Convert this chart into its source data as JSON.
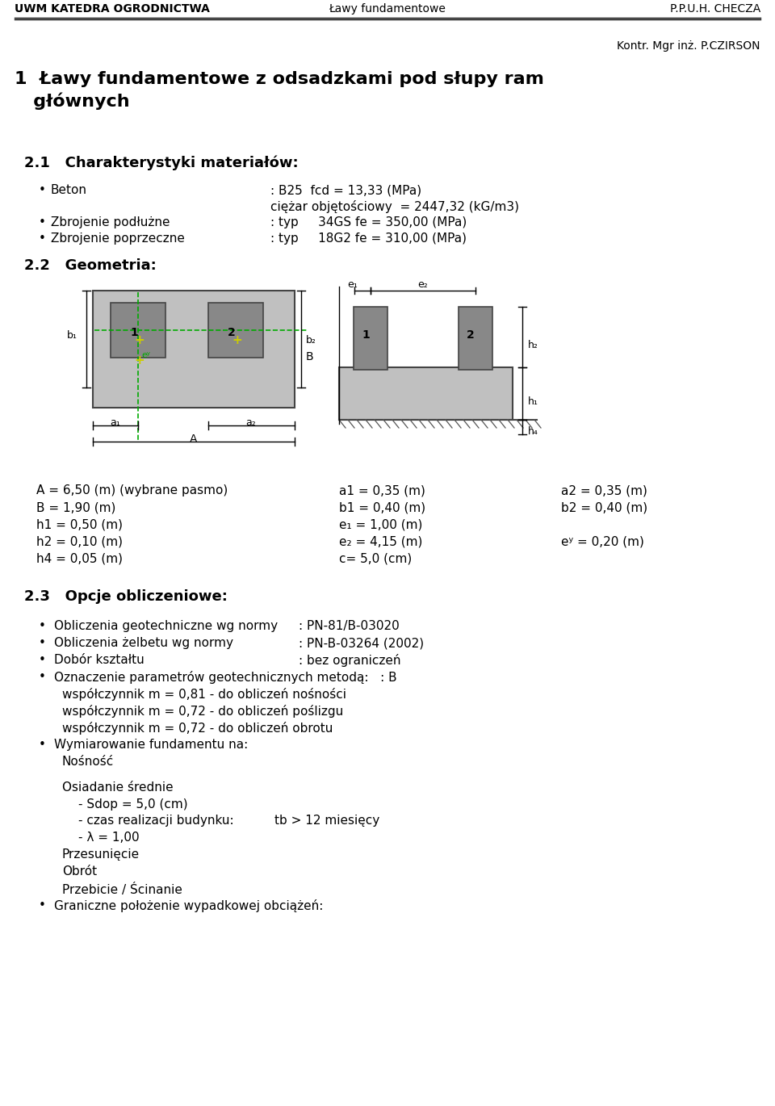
{
  "header_left": "UWM KATEDRA OGRODNICTWA",
  "header_center": "Ławy fundamentowe",
  "header_right": "P.P.U.H. CHECZA",
  "header_sub_right": "Kontr. Mgr inż. P.CZIRSON",
  "section1_line1": "1  Ławy fundamentowe z odsadzkami pod słupy ram",
  "section1_line2": "   głównych",
  "section21_title": "2.1   Charakterystyki materiałów:",
  "bullet_beton": "Beton",
  "bullet_beton_val1": ": B25  fcd = 13,33 (MPa)",
  "bullet_beton_val2": "ciężar objętościowy  = 2447,32 (kG/m3)",
  "bullet_zbr_podl": "Zbrojenie podłużne",
  "bullet_zbr_podl_val": ": typ     34GS fe = 350,00 (MPa)",
  "bullet_zbr_poprz": "Zbrojenie poprzeczne",
  "bullet_zbr_poprz_val": ": typ     18G2 fe = 310,00 (MPa)",
  "section22_title": "2.2   Geometria:",
  "geom_params_col1": [
    "A = 6,50 (m) (wybrane pasmo)",
    "B = 1,90 (m)",
    "h1 = 0,50 (m)",
    "h2 = 0,10 (m)",
    "h4 = 0,05 (m)"
  ],
  "geom_params_col2": [
    "a1 = 0,35 (m)",
    "b1 = 0,40 (m)",
    "e₁ = 1,00 (m)",
    "e₂ = 4,15 (m)",
    "c= 5,0 (cm)"
  ],
  "geom_params_col3": [
    "a2 = 0,35 (m)",
    "b2 = 0,40 (m)",
    "",
    "eʸ = 0,20 (m)",
    ""
  ],
  "section23_title": "2.3   Opcje obliczeniowe:",
  "b23_1a": "Obliczenia geotechniczne wg normy",
  "b23_1b": ": PN-81/B-03020",
  "b23_2a": "Obliczenia żelbetu wg normy",
  "b23_2b": ": PN-B-03264 (2002)",
  "b23_3a": "Dobór kształtu",
  "b23_3b": ": bez ograniczeń",
  "b23_4": "Oznaczenie parametrów geotechnicznych metodą:   : B",
  "b23_4_2": "współczynnik m = 0,81 - do obliczeń nośności",
  "b23_4_3": "współczynnik m = 0,72 - do obliczeń poślizgu",
  "b23_4_4": "współczynnik m = 0,72 - do obliczeń obrotu",
  "b23_5a": "Wymiarowanie fundamentu na:",
  "b23_5b": "Nośność",
  "osiadanie": "Osiadanie średnie",
  "os_line1": "- Sdop = 5,0 (cm)",
  "os_line2": "- czas realizacji budynku:",
  "os_line2b": "tb > 12 miesięcy",
  "os_line3": "- λ = 1,00",
  "os_line4": "Przesunięcie",
  "os_line5": "Obrót",
  "os_line6": "Przebicie / Ścinanie",
  "bullet23_6": "Graniczne położenie wypadkowej obciążeń:",
  "bg_color": "#ffffff"
}
